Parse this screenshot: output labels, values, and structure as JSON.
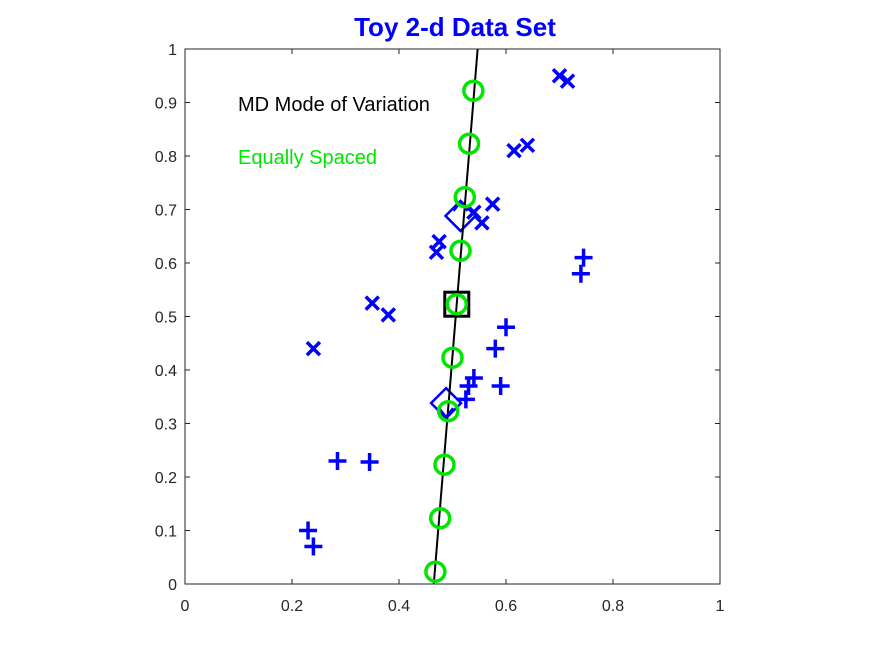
{
  "chart_data": {
    "type": "scatter",
    "title": "Toy 2-d Data Set",
    "title_color": "#0000ff",
    "xlabel": "",
    "ylabel": "",
    "xlim": [
      0,
      1
    ],
    "ylim": [
      0,
      1
    ],
    "xticks": [
      0,
      0.2,
      0.4,
      0.6,
      0.8,
      1
    ],
    "yticks": [
      0,
      0.1,
      0.2,
      0.3,
      0.4,
      0.5,
      0.6,
      0.7,
      0.8,
      0.9,
      1
    ],
    "xtick_labels": [
      "0",
      "0.2",
      "0.4",
      "0.6",
      "0.8",
      "1"
    ],
    "ytick_labels": [
      "0",
      "0.1",
      "0.2",
      "0.3",
      "0.4",
      "0.5",
      "0.6",
      "0.7",
      "0.8",
      "0.9",
      "1"
    ],
    "grid": false,
    "annotations": [
      {
        "text": "MD Mode of Variation",
        "color": "#000000"
      },
      {
        "text": "Equally Spaced",
        "color": "#00e600"
      }
    ],
    "series": [
      {
        "marker": "x",
        "color": "#0000ff",
        "points": [
          [
            0.24,
            0.44
          ],
          [
            0.35,
            0.525
          ],
          [
            0.38,
            0.503
          ],
          [
            0.47,
            0.62
          ],
          [
            0.475,
            0.64
          ],
          [
            0.54,
            0.695
          ],
          [
            0.555,
            0.675
          ],
          [
            0.575,
            0.71
          ],
          [
            0.615,
            0.81
          ],
          [
            0.64,
            0.82
          ],
          [
            0.7,
            0.95
          ],
          [
            0.715,
            0.94
          ]
        ]
      },
      {
        "marker": "+",
        "color": "#0000ff",
        "points": [
          [
            0.23,
            0.1
          ],
          [
            0.24,
            0.07
          ],
          [
            0.285,
            0.23
          ],
          [
            0.345,
            0.228
          ],
          [
            0.525,
            0.345
          ],
          [
            0.53,
            0.37
          ],
          [
            0.54,
            0.385
          ],
          [
            0.59,
            0.37
          ],
          [
            0.58,
            0.44
          ],
          [
            0.6,
            0.48
          ],
          [
            0.74,
            0.58
          ],
          [
            0.745,
            0.61
          ]
        ]
      },
      {
        "marker": "o",
        "color": "#00e600",
        "points": [
          [
            0.468,
            0.023
          ],
          [
            0.477,
            0.123
          ],
          [
            0.485,
            0.223
          ],
          [
            0.492,
            0.323
          ],
          [
            0.5,
            0.423
          ],
          [
            0.508,
            0.523
          ],
          [
            0.515,
            0.623
          ],
          [
            0.523,
            0.723
          ],
          [
            0.531,
            0.823
          ],
          [
            0.539,
            0.922
          ]
        ]
      },
      {
        "marker": "diamond-arrow",
        "color": "#0000ff",
        "points": [
          [
            0.515,
            0.688
          ],
          [
            0.488,
            0.338
          ]
        ]
      },
      {
        "marker": "square",
        "color": "#000000",
        "points": [
          [
            0.508,
            0.523
          ]
        ]
      }
    ],
    "lines": [
      {
        "color": "#000000",
        "points": [
          [
            0.465,
            0.0
          ],
          [
            0.547,
            1.0
          ]
        ]
      }
    ]
  }
}
